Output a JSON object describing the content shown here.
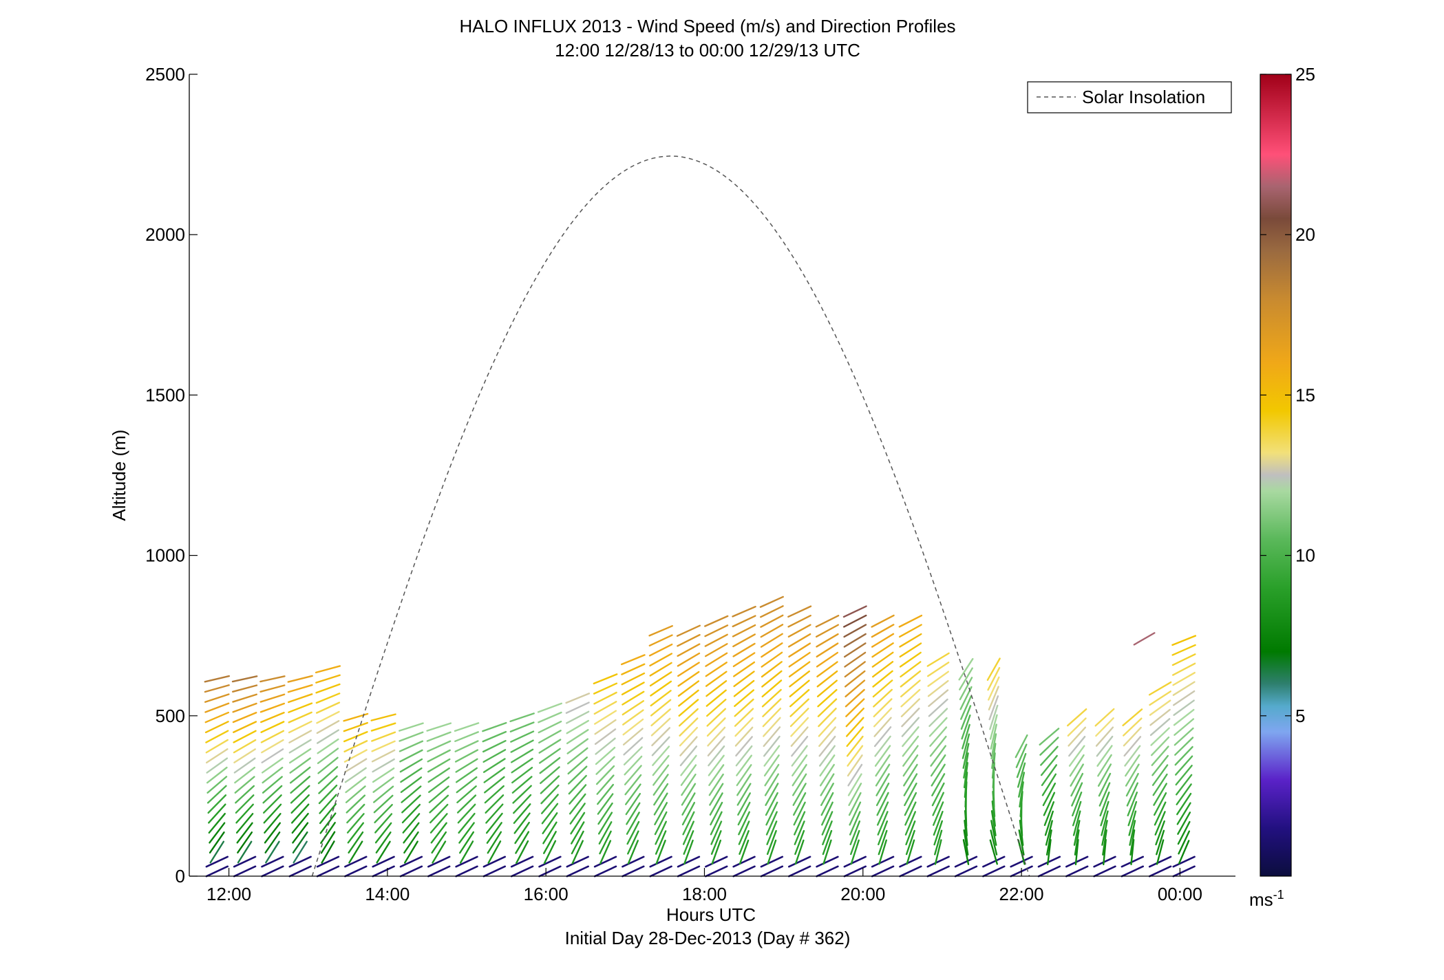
{
  "chart_data": {
    "type": "scatter",
    "plot_kind": "wind barb profile (colored line segments by wind speed)",
    "title": "HALO INFLUX 2013 - Wind Speed (m/s) and Direction Profiles",
    "subtitle": "12:00 12/28/13 to 00:00 12/29/13  UTC",
    "xlabel": "Hours UTC",
    "xlabel2": "Initial Day 28-Dec-2013 (Day # 362)",
    "ylabel": "Altitude (m)",
    "xlim": [
      11.5,
      24.7
    ],
    "ylim": [
      0,
      2500
    ],
    "xticks": [
      {
        "value": 12,
        "label": "12:00"
      },
      {
        "value": 14,
        "label": "14:00"
      },
      {
        "value": 16,
        "label": "16:00"
      },
      {
        "value": 18,
        "label": "18:00"
      },
      {
        "value": 20,
        "label": "20:00"
      },
      {
        "value": 22,
        "label": "22:00"
      },
      {
        "value": 24,
        "label": "00:00"
      }
    ],
    "yticks": [
      {
        "value": 0,
        "label": "0"
      },
      {
        "value": 500,
        "label": "500"
      },
      {
        "value": 1000,
        "label": "1000"
      },
      {
        "value": 1500,
        "label": "1500"
      },
      {
        "value": 2000,
        "label": "2000"
      },
      {
        "value": 2500,
        "label": "2500"
      }
    ],
    "legend": {
      "label": "Solar Insolation",
      "placement": "top-right",
      "line_color": "#555555",
      "line_style": "dashed"
    },
    "solar_insolation": {
      "start_hour": 13.05,
      "end_hour": 22.1,
      "peak_hour": 17.57,
      "peak_altitude": 2245
    },
    "colorbar": {
      "label": "ms",
      "label_superscript": "-1",
      "range": [
        0,
        25
      ],
      "ticks": [
        {
          "value": 5,
          "label": "5"
        },
        {
          "value": 10,
          "label": "10"
        },
        {
          "value": 15,
          "label": "15"
        },
        {
          "value": 20,
          "label": "20"
        },
        {
          "value": 25,
          "label": "25"
        }
      ],
      "stops": [
        {
          "v": 0,
          "color": "#0b0d3d"
        },
        {
          "v": 1.5,
          "color": "#221080"
        },
        {
          "v": 3,
          "color": "#5a22c8"
        },
        {
          "v": 4.5,
          "color": "#7fa6f0"
        },
        {
          "v": 5.3,
          "color": "#55aacc"
        },
        {
          "v": 6,
          "color": "#2e7f6e"
        },
        {
          "v": 7,
          "color": "#007a00"
        },
        {
          "v": 9,
          "color": "#2aa02a"
        },
        {
          "v": 10.5,
          "color": "#5ab85a"
        },
        {
          "v": 12,
          "color": "#a8d9a0"
        },
        {
          "v": 12.5,
          "color": "#bfbfbf"
        },
        {
          "v": 13.2,
          "color": "#f2e07a"
        },
        {
          "v": 14.5,
          "color": "#f2c800"
        },
        {
          "v": 16,
          "color": "#f0a818"
        },
        {
          "v": 18,
          "color": "#c88a30"
        },
        {
          "v": 19.5,
          "color": "#9a6a40"
        },
        {
          "v": 20.5,
          "color": "#7a4a3a"
        },
        {
          "v": 21.5,
          "color": "#a86470"
        },
        {
          "v": 22.5,
          "color": "#ff5078"
        },
        {
          "v": 25,
          "color": "#a00018"
        }
      ]
    },
    "profiles": [
      {
        "hour": 11.85,
        "top": 630,
        "spd_low": 5,
        "spd_high": 19,
        "dir": 12
      },
      {
        "hour": 12.2,
        "top": 620,
        "spd_low": 5,
        "spd_high": 19,
        "dir": 12
      },
      {
        "hour": 12.55,
        "top": 620,
        "spd_low": 5,
        "spd_high": 18,
        "dir": 12
      },
      {
        "hour": 12.9,
        "top": 640,
        "spd_low": 5,
        "spd_high": 17,
        "dir": 12
      },
      {
        "hour": 13.25,
        "top": 660,
        "spd_low": 6,
        "spd_high": 16,
        "dir": 14
      },
      {
        "hour": 13.6,
        "top": 520,
        "spd_low": 7,
        "spd_high": 16,
        "dir": 14
      },
      {
        "hour": 13.95,
        "top": 500,
        "spd_low": 7,
        "spd_high": 15,
        "dir": 14
      },
      {
        "hour": 14.3,
        "top": 490,
        "spd_low": 7,
        "spd_high": 12,
        "dir": 15
      },
      {
        "hour": 14.65,
        "top": 490,
        "spd_low": 8,
        "spd_high": 12,
        "dir": 15
      },
      {
        "hour": 15.0,
        "top": 490,
        "spd_low": 8,
        "spd_high": 12,
        "dir": 16
      },
      {
        "hour": 15.35,
        "top": 490,
        "spd_low": 8,
        "spd_high": 11,
        "dir": 17
      },
      {
        "hour": 15.7,
        "top": 500,
        "spd_low": 8,
        "spd_high": 11,
        "dir": 18
      },
      {
        "hour": 16.05,
        "top": 540,
        "spd_low": 8,
        "spd_high": 12,
        "dir": 19
      },
      {
        "hour": 16.4,
        "top": 580,
        "spd_low": 8,
        "spd_high": 13,
        "dir": 20
      },
      {
        "hour": 16.75,
        "top": 640,
        "spd_low": 8,
        "spd_high": 15,
        "dir": 20
      },
      {
        "hour": 17.1,
        "top": 690,
        "spd_low": 8,
        "spd_high": 16,
        "dir": 21
      },
      {
        "hour": 17.45,
        "top": 780,
        "spd_low": 8,
        "spd_high": 17,
        "dir": 22
      },
      {
        "hour": 17.8,
        "top": 790,
        "spd_low": 8,
        "spd_high": 18,
        "dir": 23
      },
      {
        "hour": 18.15,
        "top": 810,
        "spd_low": 8,
        "spd_high": 18,
        "dir": 23
      },
      {
        "hour": 18.5,
        "top": 830,
        "spd_low": 8,
        "spd_high": 18,
        "dir": 23
      },
      {
        "hour": 18.85,
        "top": 860,
        "spd_low": 8,
        "spd_high": 18,
        "dir": 24
      },
      {
        "hour": 19.2,
        "top": 840,
        "spd_low": 8,
        "spd_high": 18,
        "dir": 24
      },
      {
        "hour": 19.55,
        "top": 820,
        "spd_low": 8,
        "spd_high": 18,
        "dir": 25
      },
      {
        "hour": 19.9,
        "top": 830,
        "spd_low": 8,
        "spd_high": 21,
        "dir": 25
      },
      {
        "hour": 20.25,
        "top": 820,
        "spd_low": 8,
        "spd_high": 17,
        "dir": 26
      },
      {
        "hour": 20.6,
        "top": 810,
        "spd_low": 8,
        "spd_high": 16,
        "dir": 26
      },
      {
        "hour": 20.95,
        "top": 690,
        "spd_low": 8,
        "spd_high": 14,
        "dir": 30
      },
      {
        "hour": 21.3,
        "top": 670,
        "spd_low": 7,
        "spd_high": 12,
        "dir": 55
      },
      {
        "hour": 21.65,
        "top": 650,
        "spd_low": 7,
        "spd_high": 14,
        "dir": 60
      },
      {
        "hour": 22.0,
        "top": 410,
        "spd_low": 7,
        "spd_high": 11,
        "dir": 62
      },
      {
        "hour": 22.35,
        "top": 440,
        "spd_low": 7,
        "spd_high": 11,
        "dir": 40
      },
      {
        "hour": 22.7,
        "top": 510,
        "spd_low": 7,
        "spd_high": 14,
        "dir": 40
      },
      {
        "hour": 23.05,
        "top": 520,
        "spd_low": 7,
        "spd_high": 14,
        "dir": 40
      },
      {
        "hour": 23.4,
        "top": 500,
        "spd_low": 7,
        "spd_high": 14,
        "dir": 40
      },
      {
        "hour": 23.75,
        "top": 590,
        "spd_low": 7,
        "spd_high": 14,
        "dir": 30
      },
      {
        "hour": 24.05,
        "top": 760,
        "spd_low": 7,
        "spd_high": 15,
        "dir": 20
      }
    ],
    "isolated_segments": [
      {
        "hour": 23.55,
        "altitude": 740,
        "speed": 21.5,
        "dir": 30
      }
    ]
  }
}
